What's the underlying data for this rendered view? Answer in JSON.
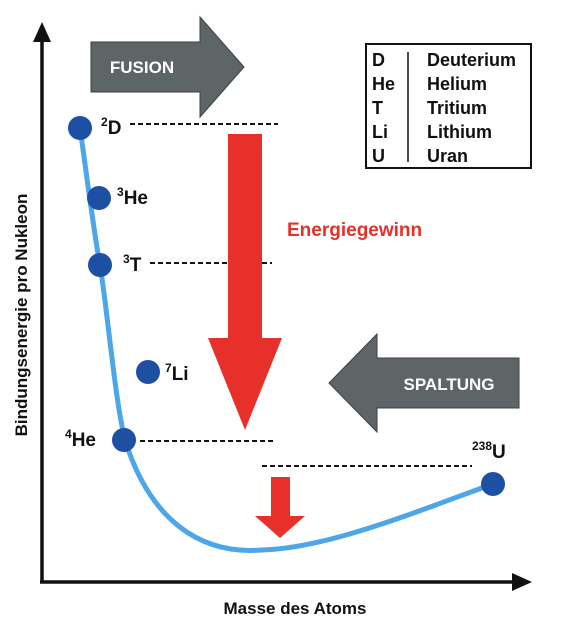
{
  "axes": {
    "x_title": "Masse des Atoms",
    "y_title": "Bindungsenergie pro Nukleon"
  },
  "arrows": {
    "fusion_label": "FUSION",
    "spaltung_label": "SPALTUNG"
  },
  "energy_gain_label": "Energiegewinn",
  "points": [
    {
      "mass": "2",
      "symbol": "D"
    },
    {
      "mass": "3",
      "symbol": "He"
    },
    {
      "mass": "3",
      "symbol": "T"
    },
    {
      "mass": "7",
      "symbol": "Li"
    },
    {
      "mass": "4",
      "symbol": "He"
    },
    {
      "mass": "238",
      "symbol": "U"
    }
  ],
  "legend": [
    {
      "abbr": "D",
      "name": "Deuterium"
    },
    {
      "abbr": "He",
      "name": "Helium"
    },
    {
      "abbr": "T",
      "name": "Tritium"
    },
    {
      "abbr": "Li",
      "name": "Lithium"
    },
    {
      "abbr": "U",
      "name": "Uran"
    }
  ],
  "colors": {
    "curve": "#4da6e8",
    "point": "#1d4fa3",
    "big_arrow": "#e8302a",
    "side_arrow": "#5e6566",
    "energy_text": "#e8302a"
  }
}
